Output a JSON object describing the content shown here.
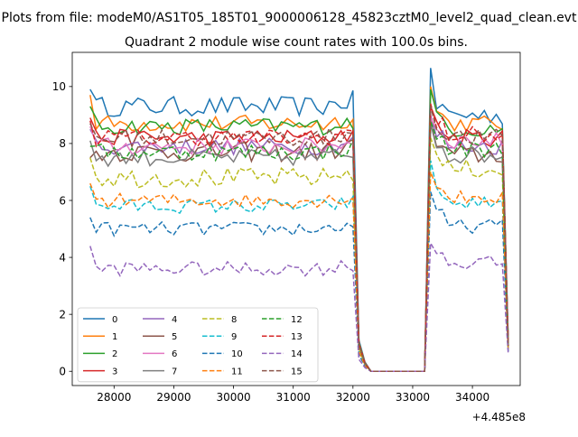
{
  "figure": {
    "suptitle": "Plots from file: modeM0/AS1T05_185T01_9000006128_45823cztM0_level2_quad_clean.evt",
    "title": "Quadrant 2 module wise count rates with 100.0s bins.",
    "x_offset_label": "+4.485e8"
  },
  "chart_data": {
    "type": "line",
    "title": "Quadrant 2 module wise count rates with 100.0s bins.",
    "xlabel": "",
    "ylabel": "",
    "x_offset": 448500000,
    "xlim": [
      27300,
      34800
    ],
    "ylim": [
      -0.5,
      11.2
    ],
    "xticks": [
      28000,
      29000,
      30000,
      31000,
      32000,
      33000,
      34000
    ],
    "yticks": [
      0,
      2,
      4,
      6,
      8,
      10
    ],
    "grid": false,
    "legend": {
      "placement": "lower-left",
      "ncol": 4
    },
    "segments": {
      "seg1": {
        "x_start": 27600,
        "step": 100,
        "n": 45
      },
      "gap": {
        "x": [
          32100,
          32200,
          32300,
          32400,
          33200
        ],
        "values": [
          1.0,
          0.3,
          0,
          0,
          0
        ]
      },
      "seg2": {
        "x_start": 33300,
        "step": 100,
        "n": 14
      }
    },
    "series": [
      {
        "name": "0",
        "color": "#1f77b4",
        "dash": "solid",
        "level1": 9.3,
        "level2": 9.0,
        "amp": 0.35,
        "start": 9.9,
        "peak": 10.65,
        "end": 1.1
      },
      {
        "name": "1",
        "color": "#ff7f0e",
        "dash": "solid",
        "level1": 8.7,
        "level2": 8.7,
        "amp": 0.3,
        "start": 9.7,
        "peak": 10.0,
        "end": 1.0
      },
      {
        "name": "2",
        "color": "#2ca02c",
        "dash": "solid",
        "level1": 8.6,
        "level2": 8.5,
        "amp": 0.3,
        "start": 9.3,
        "peak": 9.9,
        "end": 0.9
      },
      {
        "name": "3",
        "color": "#d62728",
        "dash": "solid",
        "level1": 8.2,
        "level2": 8.2,
        "amp": 0.3,
        "start": 8.9,
        "peak": 9.3,
        "end": 0.9
      },
      {
        "name": "4",
        "color": "#9467bd",
        "dash": "solid",
        "level1": 7.9,
        "level2": 7.9,
        "amp": 0.3,
        "start": 8.5,
        "peak": 9.0,
        "end": 0.9
      },
      {
        "name": "5",
        "color": "#8c564b",
        "dash": "solid",
        "level1": 7.7,
        "level2": 7.6,
        "amp": 0.35,
        "start": 7.5,
        "peak": 8.8,
        "end": 0.8
      },
      {
        "name": "6",
        "color": "#e377c2",
        "dash": "solid",
        "level1": 7.9,
        "level2": 8.1,
        "amp": 0.3,
        "start": 8.6,
        "peak": 8.9,
        "end": 0.9
      },
      {
        "name": "7",
        "color": "#7f7f7f",
        "dash": "solid",
        "level1": 7.5,
        "level2": 7.6,
        "amp": 0.3,
        "start": 8.1,
        "peak": 8.7,
        "end": 0.8
      },
      {
        "name": "8",
        "color": "#bcbd22",
        "dash": "dashed",
        "level1": 6.8,
        "level2": 7.1,
        "amp": 0.35,
        "start": 7.5,
        "peak": 8.2,
        "end": 0.8
      },
      {
        "name": "9",
        "color": "#17becf",
        "dash": "dashed",
        "level1": 5.8,
        "level2": 5.9,
        "amp": 0.25,
        "start": 6.5,
        "peak": 7.4,
        "end": 0.7
      },
      {
        "name": "10",
        "color": "#1f77b4",
        "dash": "dashed",
        "level1": 5.0,
        "level2": 5.1,
        "amp": 0.25,
        "start": 5.4,
        "peak": 6.3,
        "end": 0.7
      },
      {
        "name": "11",
        "color": "#ff7f0e",
        "dash": "dashed",
        "level1": 6.0,
        "level2": 6.1,
        "amp": 0.25,
        "start": 6.6,
        "peak": 7.0,
        "end": 0.7
      },
      {
        "name": "12",
        "color": "#2ca02c",
        "dash": "dashed",
        "level1": 7.7,
        "level2": 7.8,
        "amp": 0.3,
        "start": 7.9,
        "peak": 8.8,
        "end": 0.8
      },
      {
        "name": "13",
        "color": "#d62728",
        "dash": "dashed",
        "level1": 8.2,
        "level2": 8.3,
        "amp": 0.3,
        "start": 8.8,
        "peak": 9.4,
        "end": 0.9
      },
      {
        "name": "14",
        "color": "#9467bd",
        "dash": "dashed",
        "level1": 3.6,
        "level2": 3.8,
        "amp": 0.25,
        "start": 4.4,
        "peak": 4.5,
        "end": 0.6
      },
      {
        "name": "15",
        "color": "#8c564b",
        "dash": "dashed",
        "level1": 8.2,
        "level2": 8.2,
        "amp": 0.3,
        "start": 8.7,
        "peak": 9.3,
        "end": 0.9
      }
    ]
  }
}
